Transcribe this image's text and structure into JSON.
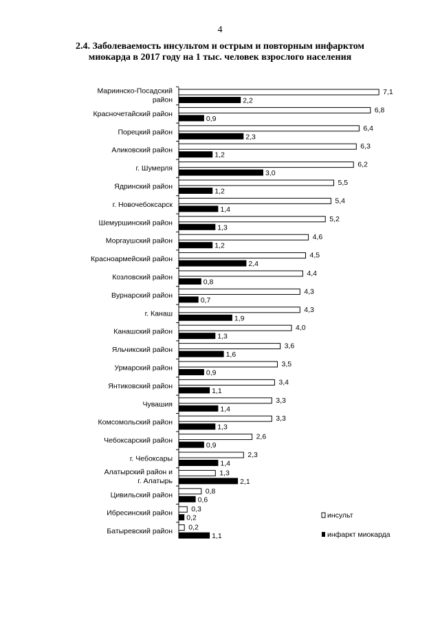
{
  "page": {
    "number": "4",
    "title_line1": "2.4. Заболеваемость инсультом и острым и повторным инфарктом",
    "title_line2": "миокарда в 2017 году на 1 тыс. человек взрослого населения"
  },
  "colors": {
    "series_stroke": "#000000",
    "stroke_fill": "#ffffff",
    "infarct_fill": "#000000"
  },
  "chart_data": {
    "type": "bar",
    "orientation": "horizontal",
    "title": "2.4. Заболеваемость инсультом и острым и повторным инфарктом миокарда в 2017 году на 1 тыс. человек взрослого населения",
    "xlabel": "",
    "ylabel": "",
    "grid": false,
    "legend_position": "bottom-right",
    "value_format": "decimal-comma-1",
    "categories": [
      [
        "Мариинско-Посадский",
        "район"
      ],
      [
        "Красночетайский район"
      ],
      [
        "Порецкий район"
      ],
      [
        "Аликовский район"
      ],
      [
        "г. Шумерля"
      ],
      [
        "Ядринский район"
      ],
      [
        "г. Новочебоксарск"
      ],
      [
        "Шемуршинский  район"
      ],
      [
        "Моргаушский район"
      ],
      [
        "Красноармейский район"
      ],
      [
        "Козловский район"
      ],
      [
        "Вурнарский район"
      ],
      [
        "г. Канаш"
      ],
      [
        "Канашский район"
      ],
      [
        "Яльчикский район"
      ],
      [
        "Урмарский район"
      ],
      [
        "Янтиковский район"
      ],
      [
        "Чувашия"
      ],
      [
        "Комсомольский район"
      ],
      [
        "Чебоксарский район"
      ],
      [
        "г. Чебоксары"
      ],
      [
        "Алатырский район  и",
        "г. Алатырь"
      ],
      [
        "Цивильский район"
      ],
      [
        "Ибресинский район"
      ],
      [
        "Батыревский район"
      ]
    ],
    "series": [
      {
        "name": "инсульт",
        "style": "outline",
        "values": [
          7.1,
          6.8,
          6.4,
          6.3,
          6.2,
          5.5,
          5.4,
          5.2,
          4.6,
          4.5,
          4.4,
          4.3,
          4.3,
          4.0,
          3.6,
          3.5,
          3.4,
          3.3,
          3.3,
          2.6,
          2.3,
          1.3,
          0.8,
          0.3,
          0.2
        ]
      },
      {
        "name": "инфаркт миокарда",
        "style": "solid",
        "values": [
          2.2,
          0.9,
          2.3,
          1.2,
          3.0,
          1.2,
          1.4,
          1.3,
          1.2,
          2.4,
          0.8,
          0.7,
          1.9,
          1.3,
          1.6,
          0.9,
          1.1,
          1.4,
          1.3,
          0.9,
          1.4,
          2.1,
          0.6,
          0.2,
          1.1
        ]
      }
    ]
  }
}
